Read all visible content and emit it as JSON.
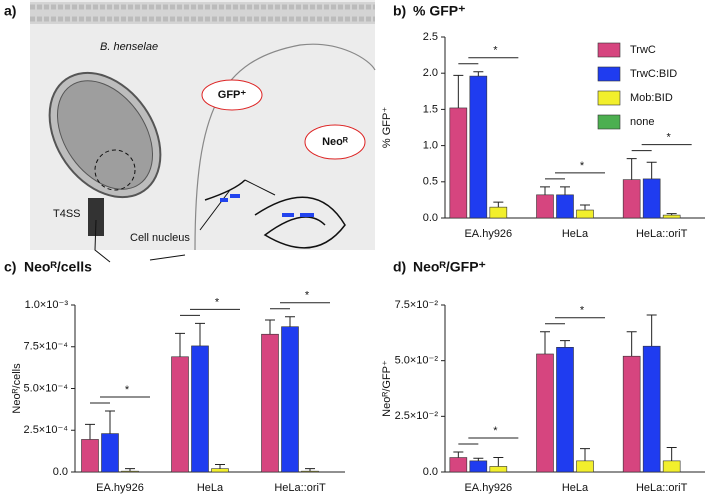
{
  "diagram": {
    "panel": "a)",
    "organism": "B. henselae",
    "secretion": "T4SS",
    "bubble_gfp": "GFP⁺",
    "bubble_neo": "Neoᴿ",
    "nucleus": "Cell nucleus"
  },
  "chart_data": [
    {
      "type": "bar",
      "panel": "b)",
      "title": "% GFP⁺",
      "y_label": "% GFP⁺",
      "legend": true,
      "categories": [
        "EA.hy926",
        "HeLa",
        "HeLa::oriT"
      ],
      "series": [
        {
          "name": "TrwC",
          "color": "#d6457f",
          "values": [
            1.52,
            0.32,
            0.53
          ],
          "errors": [
            0.45,
            0.11,
            0.29
          ]
        },
        {
          "name": "TrwC:BID",
          "color": "#1f3cf0",
          "values": [
            1.96,
            0.32,
            0.54
          ],
          "errors": [
            0.06,
            0.11,
            0.23
          ]
        },
        {
          "name": "Mob:BID",
          "color": "#f2ef2c",
          "values": [
            0.15,
            0.11,
            0.04
          ],
          "errors": [
            0.07,
            0.07,
            0.02
          ]
        },
        {
          "name": "none",
          "color": "#4caf50",
          "values": [
            0,
            0,
            0
          ],
          "errors": [
            null,
            null,
            null
          ]
        }
      ],
      "annotations": [
        "*",
        "*",
        "*"
      ],
      "ylim": [
        0,
        2.5
      ],
      "yticks": [
        {
          "value": 0,
          "label": "0.0"
        },
        0.5,
        {
          "value": 1,
          "label": "1.0"
        },
        1.5,
        {
          "value": 2,
          "label": "2.0"
        },
        2.5
      ]
    },
    {
      "type": "bar",
      "panel": "c)",
      "title": "Neoᴿ/cells",
      "y_label": "Neoᴿ/cells",
      "legend": false,
      "categories": [
        "EA.hy926",
        "HeLa",
        "HeLa::oriT"
      ],
      "series": [
        {
          "name": "TrwC",
          "color": "#d6457f",
          "values": [
            0.000195,
            0.00069,
            0.000825
          ],
          "errors": [
            9e-05,
            0.00014,
            8.5e-05
          ]
        },
        {
          "name": "TrwC:BID",
          "color": "#1f3cf0",
          "values": [
            0.00023,
            0.000755,
            0.00087
          ],
          "errors": [
            0.000135,
            0.000135,
            6e-05
          ]
        },
        {
          "name": "Mob:BID",
          "color": "#f2ef2c",
          "values": [
            5e-06,
            2e-05,
            5e-06
          ],
          "errors": [
            1.5e-05,
            2.5e-05,
            1.5e-05
          ]
        },
        {
          "name": "none",
          "color": "#4caf50",
          "values": [
            0,
            0,
            0
          ],
          "errors": [
            null,
            null,
            null
          ]
        }
      ],
      "annotations": [
        "*",
        "*",
        "*"
      ],
      "ylim": [
        0,
        0.001
      ],
      "yticks": [
        {
          "value": 0,
          "label": "0.0"
        },
        {
          "value": 0.00025,
          "label": "2.5×10⁻⁴"
        },
        {
          "value": 0.0005,
          "label": "5.0×10⁻⁴"
        },
        {
          "value": 0.00075,
          "label": "7.5×10⁻⁴"
        },
        {
          "value": 0.001,
          "label": "1.0×10⁻³"
        }
      ]
    },
    {
      "type": "bar",
      "panel": "d)",
      "title": "Neoᴿ/GFP⁺",
      "y_label": "Neoᴿ/GFP⁺",
      "legend": false,
      "categories": [
        "EA.hy926",
        "HeLa",
        "HeLa::oriT"
      ],
      "series": [
        {
          "name": "TrwC",
          "color": "#d6457f",
          "values": [
            0.0065,
            0.053,
            0.052
          ],
          "errors": [
            0.0025,
            0.01,
            0.011
          ]
        },
        {
          "name": "TrwC:BID",
          "color": "#1f3cf0",
          "values": [
            0.005,
            0.056,
            0.0565
          ],
          "errors": [
            0.0012,
            0.003,
            0.014
          ]
        },
        {
          "name": "Mob:BID",
          "color": "#f2ef2c",
          "values": [
            0.0025,
            0.005,
            0.005
          ],
          "errors": [
            0.004,
            0.0055,
            0.006
          ]
        },
        {
          "name": "none",
          "color": "#4caf50",
          "values": [
            0,
            0,
            0
          ],
          "errors": [
            null,
            null,
            null
          ]
        }
      ],
      "annotations": [
        "*",
        "*"
      ],
      "ylim": [
        0,
        0.075
      ],
      "yticks": [
        {
          "value": 0,
          "label": "0.0"
        },
        {
          "value": 0.025,
          "label": "2.5×10⁻²"
        },
        {
          "value": 0.05,
          "label": "5.0×10⁻²"
        },
        {
          "value": 0.075,
          "label": "7.5×10⁻²"
        }
      ]
    }
  ]
}
